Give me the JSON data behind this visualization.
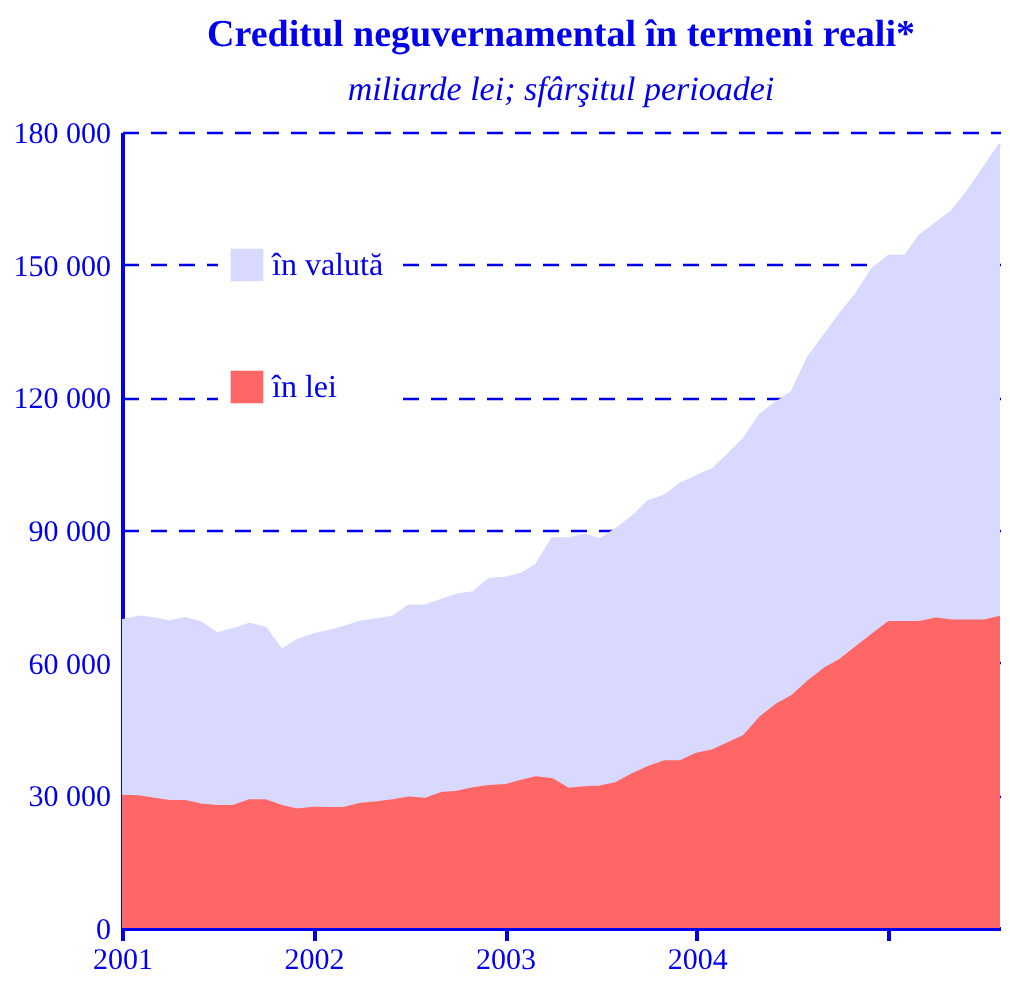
{
  "chart_data": {
    "type": "area",
    "stacked": true,
    "title": "Creditul neguvernamental în termeni reali*",
    "subtitle": "miliarde lei; sfârşitul perioadei",
    "x": [
      "2001-01",
      "2001-02",
      "2001-03",
      "2001-04",
      "2001-05",
      "2001-06",
      "2001-07",
      "2001-08",
      "2001-09",
      "2001-10",
      "2001-11",
      "2001-12",
      "2002-01",
      "2002-02",
      "2002-03",
      "2002-04",
      "2002-05",
      "2002-06",
      "2002-07",
      "2002-08",
      "2002-09",
      "2002-10",
      "2002-11",
      "2002-12",
      "2003-01",
      "2003-02",
      "2003-03",
      "2003-04",
      "2003-05",
      "2003-06",
      "2003-07",
      "2003-08",
      "2003-09",
      "2003-10",
      "2003-11",
      "2003-12",
      "2004-01",
      "2004-02",
      "2004-03",
      "2004-04",
      "2004-05",
      "2004-06",
      "2004-07",
      "2004-08",
      "2004-09",
      "2004-10",
      "2004-11",
      "2004-12",
      "2005-01",
      "2005-02",
      "2005-03",
      "2005-04",
      "2005-05",
      "2005-06",
      "2005-07",
      "2005-08"
    ],
    "series": [
      {
        "name": "în lei",
        "color": "#ff6666",
        "values": [
          29800,
          29700,
          29200,
          28600,
          28600,
          27800,
          27500,
          27500,
          28800,
          28800,
          27500,
          26700,
          27100,
          27000,
          27100,
          28000,
          28300,
          28800,
          29400,
          29100,
          30400,
          30700,
          31500,
          32000,
          32200,
          33200,
          34000,
          33500,
          31400,
          31700,
          31900,
          32700,
          34700,
          36300,
          37600,
          37600,
          39300,
          40100,
          41700,
          43400,
          47500,
          50400,
          52400,
          55700,
          58600,
          60600,
          63500,
          66300,
          69100,
          69100,
          69100,
          69900,
          69400,
          69400,
          69400,
          70300
        ]
      },
      {
        "name": "în valută",
        "color": "#d9d9ff",
        "values": [
          39700,
          40600,
          40800,
          40600,
          41400,
          41200,
          39000,
          40000,
          39900,
          39000,
          35300,
          38300,
          39200,
          40100,
          40900,
          41200,
          41400,
          41500,
          43400,
          43700,
          43700,
          44600,
          44300,
          46800,
          46900,
          46800,
          48000,
          54500,
          56600,
          57100,
          55900,
          57500,
          58300,
          60100,
          60100,
          62800,
          62800,
          63600,
          65300,
          67300,
          68500,
          68400,
          68800,
          73400,
          75400,
          78300,
          79900,
          82700,
          82800,
          82800,
          87400,
          89400,
          92600,
          97200,
          102400,
          106900
        ]
      }
    ],
    "xlim": [
      "2001-01",
      "2005-08"
    ],
    "xticks": [
      {
        "value": "2001-01",
        "label": "2001"
      },
      {
        "value": "2002-01",
        "label": "2002"
      },
      {
        "value": "2003-01",
        "label": "2003"
      },
      {
        "value": "2004-01",
        "label": "2004"
      },
      {
        "value": "2005-01",
        "label": null
      }
    ],
    "ylim": [
      0,
      180000
    ],
    "yticks": [
      0,
      {
        "value": 30000,
        "label": "30 000"
      },
      {
        "value": 60000,
        "label": "60 000"
      },
      {
        "value": 90000,
        "label": "90 000"
      },
      {
        "value": 120000,
        "label": "120 000"
      },
      {
        "value": 150000,
        "label": "150 000"
      },
      {
        "value": 180000,
        "label": "180 000"
      }
    ],
    "grid": "y",
    "legend": "top left"
  }
}
